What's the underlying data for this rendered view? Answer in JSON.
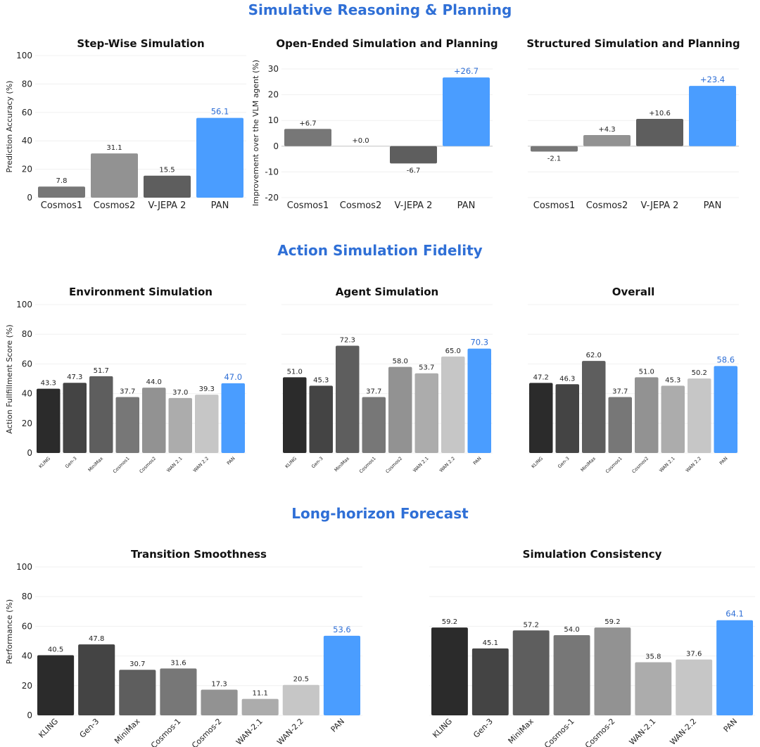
{
  "sections": [
    {
      "title": "Simulative Reasoning & Planning"
    },
    {
      "title": "Action Simulation Fidelity"
    },
    {
      "title": "Long-horizon Forecast"
    }
  ],
  "colors": {
    "highlight": "#4a9dff",
    "highlight_text": "#2f6fd6",
    "section_title": "#2f6fd6",
    "greys": [
      "#2b2b2b",
      "#444444",
      "#5e5e5e",
      "#777777",
      "#929292",
      "#acacac",
      "#c6c6c6"
    ]
  },
  "chart_data": [
    {
      "type": "bar",
      "title": "Step-Wise Simulation",
      "ylabel": "Prediction Accuracy (%)",
      "ylim": [
        0,
        100
      ],
      "yticks": [
        0,
        20,
        40,
        60,
        80,
        100
      ],
      "categories": [
        "Cosmos1",
        "Cosmos2",
        "V-JEPA 2",
        "PAN"
      ],
      "values": [
        7.8,
        31.1,
        15.5,
        56.1
      ],
      "labels": [
        "7.8",
        "31.1",
        "15.5",
        "56.1"
      ],
      "bar_colors": [
        "#777777",
        "#929292",
        "#5e5e5e",
        "#4a9dff"
      ],
      "highlight_index": 3
    },
    {
      "type": "bar",
      "title": "Open-Ended Simulation and Planning",
      "ylabel": "Improvement over the VLM agent (%)",
      "ylim": [
        -20,
        30
      ],
      "yticks": [
        -20,
        -10,
        0,
        10,
        20,
        30
      ],
      "categories": [
        "Cosmos1",
        "Cosmos2",
        "V-JEPA 2",
        "PAN"
      ],
      "values": [
        6.7,
        0.0,
        -6.7,
        26.7
      ],
      "labels": [
        "+6.7",
        "+0.0",
        "-6.7",
        "+26.7"
      ],
      "bar_colors": [
        "#777777",
        "#929292",
        "#5e5e5e",
        "#4a9dff"
      ],
      "highlight_index": 3
    },
    {
      "type": "bar",
      "title": "Structured Simulation and Planning",
      "ylabel": "",
      "ylim": [
        -20,
        30
      ],
      "yticks": [],
      "categories": [
        "Cosmos1",
        "Cosmos2",
        "V-JEPA 2",
        "PAN"
      ],
      "values": [
        -2.1,
        4.3,
        10.6,
        23.4
      ],
      "labels": [
        "-2.1",
        "+4.3",
        "+10.6",
        "+23.4"
      ],
      "bar_colors": [
        "#777777",
        "#929292",
        "#5e5e5e",
        "#4a9dff"
      ],
      "highlight_index": 3
    },
    {
      "type": "bar",
      "title": "Environment Simulation",
      "ylabel": "Action Fullfillment Score (%)",
      "ylim": [
        0,
        100
      ],
      "yticks": [
        0,
        20,
        40,
        60,
        80,
        100
      ],
      "categories": [
        "KLING",
        "Gen-3",
        "MiniMax",
        "Cosmos1",
        "Cosmos2",
        "WAN 2.1",
        "WAN 2.2",
        "PAN"
      ],
      "values": [
        43.3,
        47.3,
        51.7,
        37.7,
        44.0,
        37.0,
        39.3,
        47.0
      ],
      "labels": [
        "43.3",
        "47.3",
        "51.7",
        "37.7",
        "44.0",
        "37.0",
        "39.3",
        "47.0"
      ],
      "bar_colors": [
        "#2b2b2b",
        "#444444",
        "#5e5e5e",
        "#777777",
        "#929292",
        "#acacac",
        "#c6c6c6",
        "#4a9dff"
      ],
      "highlight_index": 7
    },
    {
      "type": "bar",
      "title": "Agent Simulation",
      "ylabel": "",
      "ylim": [
        0,
        100
      ],
      "yticks": [],
      "categories": [
        "KLING",
        "Gen-3",
        "MiniMax",
        "Cosmos1",
        "Cosmos2",
        "WAN 2.1",
        "WAN 2.2",
        "PAN"
      ],
      "values": [
        51.0,
        45.3,
        72.3,
        37.7,
        58.0,
        53.7,
        65.0,
        70.3
      ],
      "labels": [
        "51.0",
        "45.3",
        "72.3",
        "37.7",
        "58.0",
        "53.7",
        "65.0",
        "70.3"
      ],
      "bar_colors": [
        "#2b2b2b",
        "#444444",
        "#5e5e5e",
        "#777777",
        "#929292",
        "#acacac",
        "#c6c6c6",
        "#4a9dff"
      ],
      "highlight_index": 7
    },
    {
      "type": "bar",
      "title": "Overall",
      "ylabel": "",
      "ylim": [
        0,
        100
      ],
      "yticks": [],
      "categories": [
        "KLING",
        "Gen-3",
        "MiniMax",
        "Cosmos1",
        "Cosmos2",
        "WAN 2.1",
        "WAN 2.2",
        "PAN"
      ],
      "values": [
        47.2,
        46.3,
        62.0,
        37.7,
        51.0,
        45.3,
        50.2,
        58.6
      ],
      "labels": [
        "47.2",
        "46.3",
        "62.0",
        "37.7",
        "51.0",
        "45.3",
        "50.2",
        "58.6"
      ],
      "bar_colors": [
        "#2b2b2b",
        "#444444",
        "#5e5e5e",
        "#777777",
        "#929292",
        "#acacac",
        "#c6c6c6",
        "#4a9dff"
      ],
      "highlight_index": 7
    },
    {
      "type": "bar",
      "title": "Transition Smoothness",
      "ylabel": "Performance (%)",
      "ylim": [
        0,
        100
      ],
      "yticks": [
        0,
        20,
        40,
        60,
        80,
        100
      ],
      "categories": [
        "KLING",
        "Gen-3",
        "MiniMax",
        "Cosmos-1",
        "Cosmos-2",
        "WAN-2.1",
        "WAN-2.2",
        "PAN"
      ],
      "values": [
        40.5,
        47.8,
        30.7,
        31.6,
        17.3,
        11.1,
        20.5,
        53.6
      ],
      "labels": [
        "40.5",
        "47.8",
        "30.7",
        "31.6",
        "17.3",
        "11.1",
        "20.5",
        "53.6"
      ],
      "bar_colors": [
        "#2b2b2b",
        "#444444",
        "#5e5e5e",
        "#777777",
        "#929292",
        "#acacac",
        "#c6c6c6",
        "#4a9dff"
      ],
      "highlight_index": 7
    },
    {
      "type": "bar",
      "title": "Simulation Consistency",
      "ylabel": "",
      "ylim": [
        0,
        100
      ],
      "yticks": [],
      "categories": [
        "KLING",
        "Gen-3",
        "MiniMax",
        "Cosmos-1",
        "Cosmos-2",
        "WAN-2.1",
        "WAN-2.2",
        "PAN"
      ],
      "values": [
        59.2,
        45.1,
        57.2,
        54.0,
        59.2,
        35.8,
        37.6,
        64.1
      ],
      "labels": [
        "59.2",
        "45.1",
        "57.2",
        "54.0",
        "59.2",
        "35.8",
        "37.6",
        "64.1"
      ],
      "bar_colors": [
        "#2b2b2b",
        "#444444",
        "#5e5e5e",
        "#777777",
        "#929292",
        "#acacac",
        "#c6c6c6",
        "#4a9dff"
      ],
      "highlight_index": 7
    }
  ]
}
